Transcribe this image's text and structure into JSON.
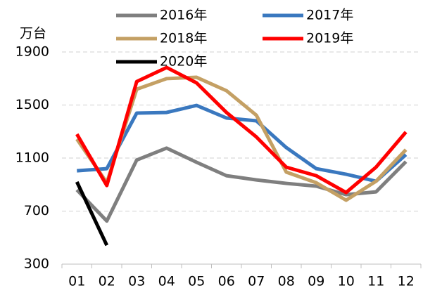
{
  "chart_data": {
    "type": "line",
    "y_axis_label": "万台",
    "categories": [
      "01",
      "02",
      "03",
      "04",
      "05",
      "06",
      "07",
      "08",
      "09",
      "10",
      "11",
      "12"
    ],
    "series": [
      {
        "name": "2016年",
        "color": "#7f7f7f",
        "values": [
          860,
          625,
          1085,
          1175,
          1068,
          967,
          935,
          909,
          888,
          824,
          845,
          1073
        ]
      },
      {
        "name": "2017年",
        "color": "#3a78bf",
        "values": [
          1004,
          1020,
          1439,
          1444,
          1497,
          1402,
          1381,
          1179,
          1020,
          978,
          925,
          1126
        ]
      },
      {
        "name": "2018年",
        "color": "#c4a064",
        "values": [
          1243,
          914,
          1619,
          1699,
          1709,
          1608,
          1423,
          994,
          914,
          782,
          925,
          1163
        ]
      },
      {
        "name": "2019年",
        "color": "#ff0000",
        "values": [
          1280,
          893,
          1677,
          1783,
          1667,
          1444,
          1259,
          1031,
          967,
          840,
          1031,
          1296
        ]
      },
      {
        "name": "2020年",
        "color": "#000000",
        "values": [
          920,
          442,
          null,
          null,
          null,
          null,
          null,
          null,
          null,
          null,
          null,
          null
        ]
      }
    ],
    "ylim": [
      300,
      1900
    ],
    "yticks": [
      300,
      700,
      1100,
      1500,
      1900
    ],
    "grid": true
  }
}
